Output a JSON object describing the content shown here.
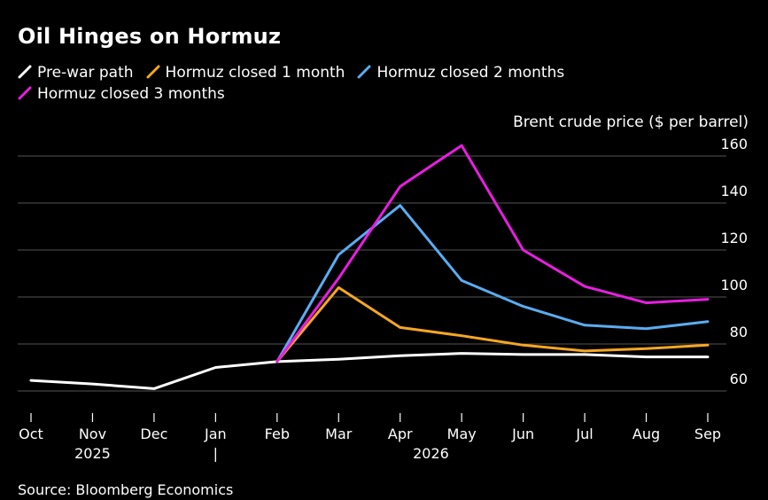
{
  "title": "Oil Hinges on Hormuz",
  "unit_label": "Brent crude price ($ per barrel)",
  "source": "Source: Bloomberg Economics",
  "chart_data": {
    "type": "line",
    "title": "Oil Hinges on Hormuz",
    "ylabel": "Brent crude price ($ per barrel)",
    "x": [
      "Oct",
      "Nov",
      "Dec",
      "Jan",
      "Feb",
      "Mar",
      "Apr",
      "May",
      "Jun",
      "Jul",
      "Aug",
      "Sep"
    ],
    "year_labels": [
      {
        "label": "2025",
        "between": [
          "Oct",
          "Dec"
        ]
      },
      {
        "label": "|",
        "at": "Jan"
      },
      {
        "label": "2026",
        "between": [
          "Mar",
          "Jun"
        ]
      }
    ],
    "ylim": [
      50,
      165
    ],
    "yticks": [
      60,
      80,
      100,
      120,
      140,
      160
    ],
    "grid": true,
    "legend_position": "top-left",
    "series": [
      {
        "name": "Pre-war path",
        "color": "#ffffff",
        "values": [
          64.5,
          63,
          61,
          70,
          72.5,
          73.5,
          75,
          76,
          75.5,
          75.5,
          74.5,
          74.5
        ]
      },
      {
        "name": "Hormuz closed 1 month",
        "color": "#f5a623",
        "values": [
          null,
          null,
          null,
          null,
          72.5,
          104,
          87,
          83.5,
          79.5,
          77,
          78,
          79.5
        ]
      },
      {
        "name": "Hormuz closed 2 months",
        "color": "#5aacf0",
        "values": [
          null,
          null,
          null,
          null,
          72.5,
          118,
          139,
          107,
          96,
          88,
          86.5,
          89.5
        ]
      },
      {
        "name": "Hormuz closed 3 months",
        "color": "#e81ee0",
        "values": [
          null,
          null,
          null,
          null,
          72.5,
          108,
          147,
          164.5,
          120,
          104.5,
          97.5,
          99
        ]
      }
    ]
  }
}
